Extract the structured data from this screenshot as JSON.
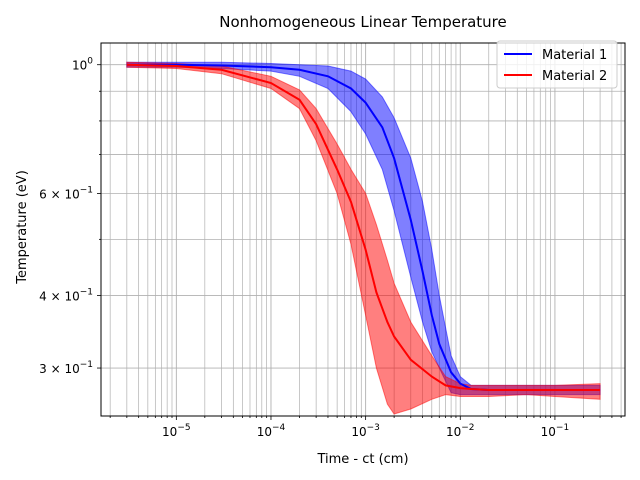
{
  "chart_data": {
    "type": "line",
    "title": "Nonhomogeneous Linear Temperature",
    "xlabel": "Time - ct (cm)",
    "ylabel": "Temperature (eV)",
    "xscale": "log",
    "yscale": "log",
    "xlim": [
      1.6e-06,
      0.55
    ],
    "ylim": [
      0.248,
      1.09
    ],
    "grid": true,
    "legend_position": "top-right",
    "x_ticks": [
      {
        "value": 1e-05,
        "base": "10",
        "exp": "−5"
      },
      {
        "value": 0.0001,
        "base": "10",
        "exp": "−4"
      },
      {
        "value": 0.001,
        "base": "10",
        "exp": "−3"
      },
      {
        "value": 0.01,
        "base": "10",
        "exp": "−2"
      },
      {
        "value": 0.1,
        "base": "10",
        "exp": "−1"
      }
    ],
    "y_ticks": [
      {
        "value": 1.0,
        "mant": "",
        "base": "10",
        "exp": "0"
      },
      {
        "value": 0.6,
        "mant": "6 × ",
        "base": "10",
        "exp": "−1"
      },
      {
        "value": 0.4,
        "mant": "4 × ",
        "base": "10",
        "exp": "−1"
      },
      {
        "value": 0.3,
        "mant": "3 × ",
        "base": "10",
        "exp": "−1"
      }
    ],
    "y_minor_ticks": [
      0.9,
      0.8,
      0.7,
      0.5
    ],
    "series": [
      {
        "name": "Material 1",
        "color": "#0000ff",
        "x": [
          3e-06,
          1e-05,
          3e-05,
          0.0001,
          0.0002,
          0.0004,
          0.0007,
          0.001,
          0.0015,
          0.002,
          0.003,
          0.004,
          0.005,
          0.006,
          0.008,
          0.01,
          0.013,
          0.02,
          0.05,
          0.1,
          0.3
        ],
        "y": [
          1.0,
          1.0,
          0.997,
          0.99,
          0.98,
          0.955,
          0.91,
          0.86,
          0.78,
          0.69,
          0.54,
          0.44,
          0.37,
          0.33,
          0.295,
          0.282,
          0.276,
          0.275,
          0.275,
          0.275,
          0.275
        ],
        "upper": [
          1.01,
          1.01,
          1.01,
          1.005,
          1.0,
          0.995,
          0.975,
          0.945,
          0.88,
          0.81,
          0.69,
          0.58,
          0.48,
          0.4,
          0.315,
          0.29,
          0.28,
          0.28,
          0.28,
          0.28,
          0.28
        ],
        "lower": [
          0.99,
          0.99,
          0.985,
          0.975,
          0.955,
          0.91,
          0.83,
          0.76,
          0.66,
          0.56,
          0.43,
          0.36,
          0.32,
          0.3,
          0.272,
          0.27,
          0.27,
          0.27,
          0.27,
          0.27,
          0.27
        ]
      },
      {
        "name": "Material 2",
        "color": "#ff0000",
        "x": [
          3e-06,
          1e-05,
          3e-05,
          0.0001,
          0.0002,
          0.0003,
          0.0005,
          0.0007,
          0.001,
          0.0013,
          0.0017,
          0.002,
          0.003,
          0.005,
          0.007,
          0.01,
          0.013,
          0.02,
          0.05,
          0.1,
          0.3
        ],
        "y": [
          1.0,
          0.995,
          0.98,
          0.93,
          0.87,
          0.79,
          0.66,
          0.58,
          0.48,
          0.405,
          0.36,
          0.34,
          0.31,
          0.29,
          0.28,
          0.277,
          0.276,
          0.275,
          0.275,
          0.275,
          0.275
        ],
        "upper": [
          1.01,
          1.005,
          0.995,
          0.955,
          0.905,
          0.84,
          0.73,
          0.66,
          0.6,
          0.53,
          0.46,
          0.42,
          0.36,
          0.315,
          0.29,
          0.282,
          0.28,
          0.28,
          0.28,
          0.28,
          0.282
        ],
        "lower": [
          0.99,
          0.985,
          0.965,
          0.91,
          0.84,
          0.74,
          0.6,
          0.49,
          0.37,
          0.3,
          0.26,
          0.25,
          0.255,
          0.265,
          0.27,
          0.268,
          0.268,
          0.268,
          0.27,
          0.268,
          0.265
        ]
      }
    ]
  }
}
